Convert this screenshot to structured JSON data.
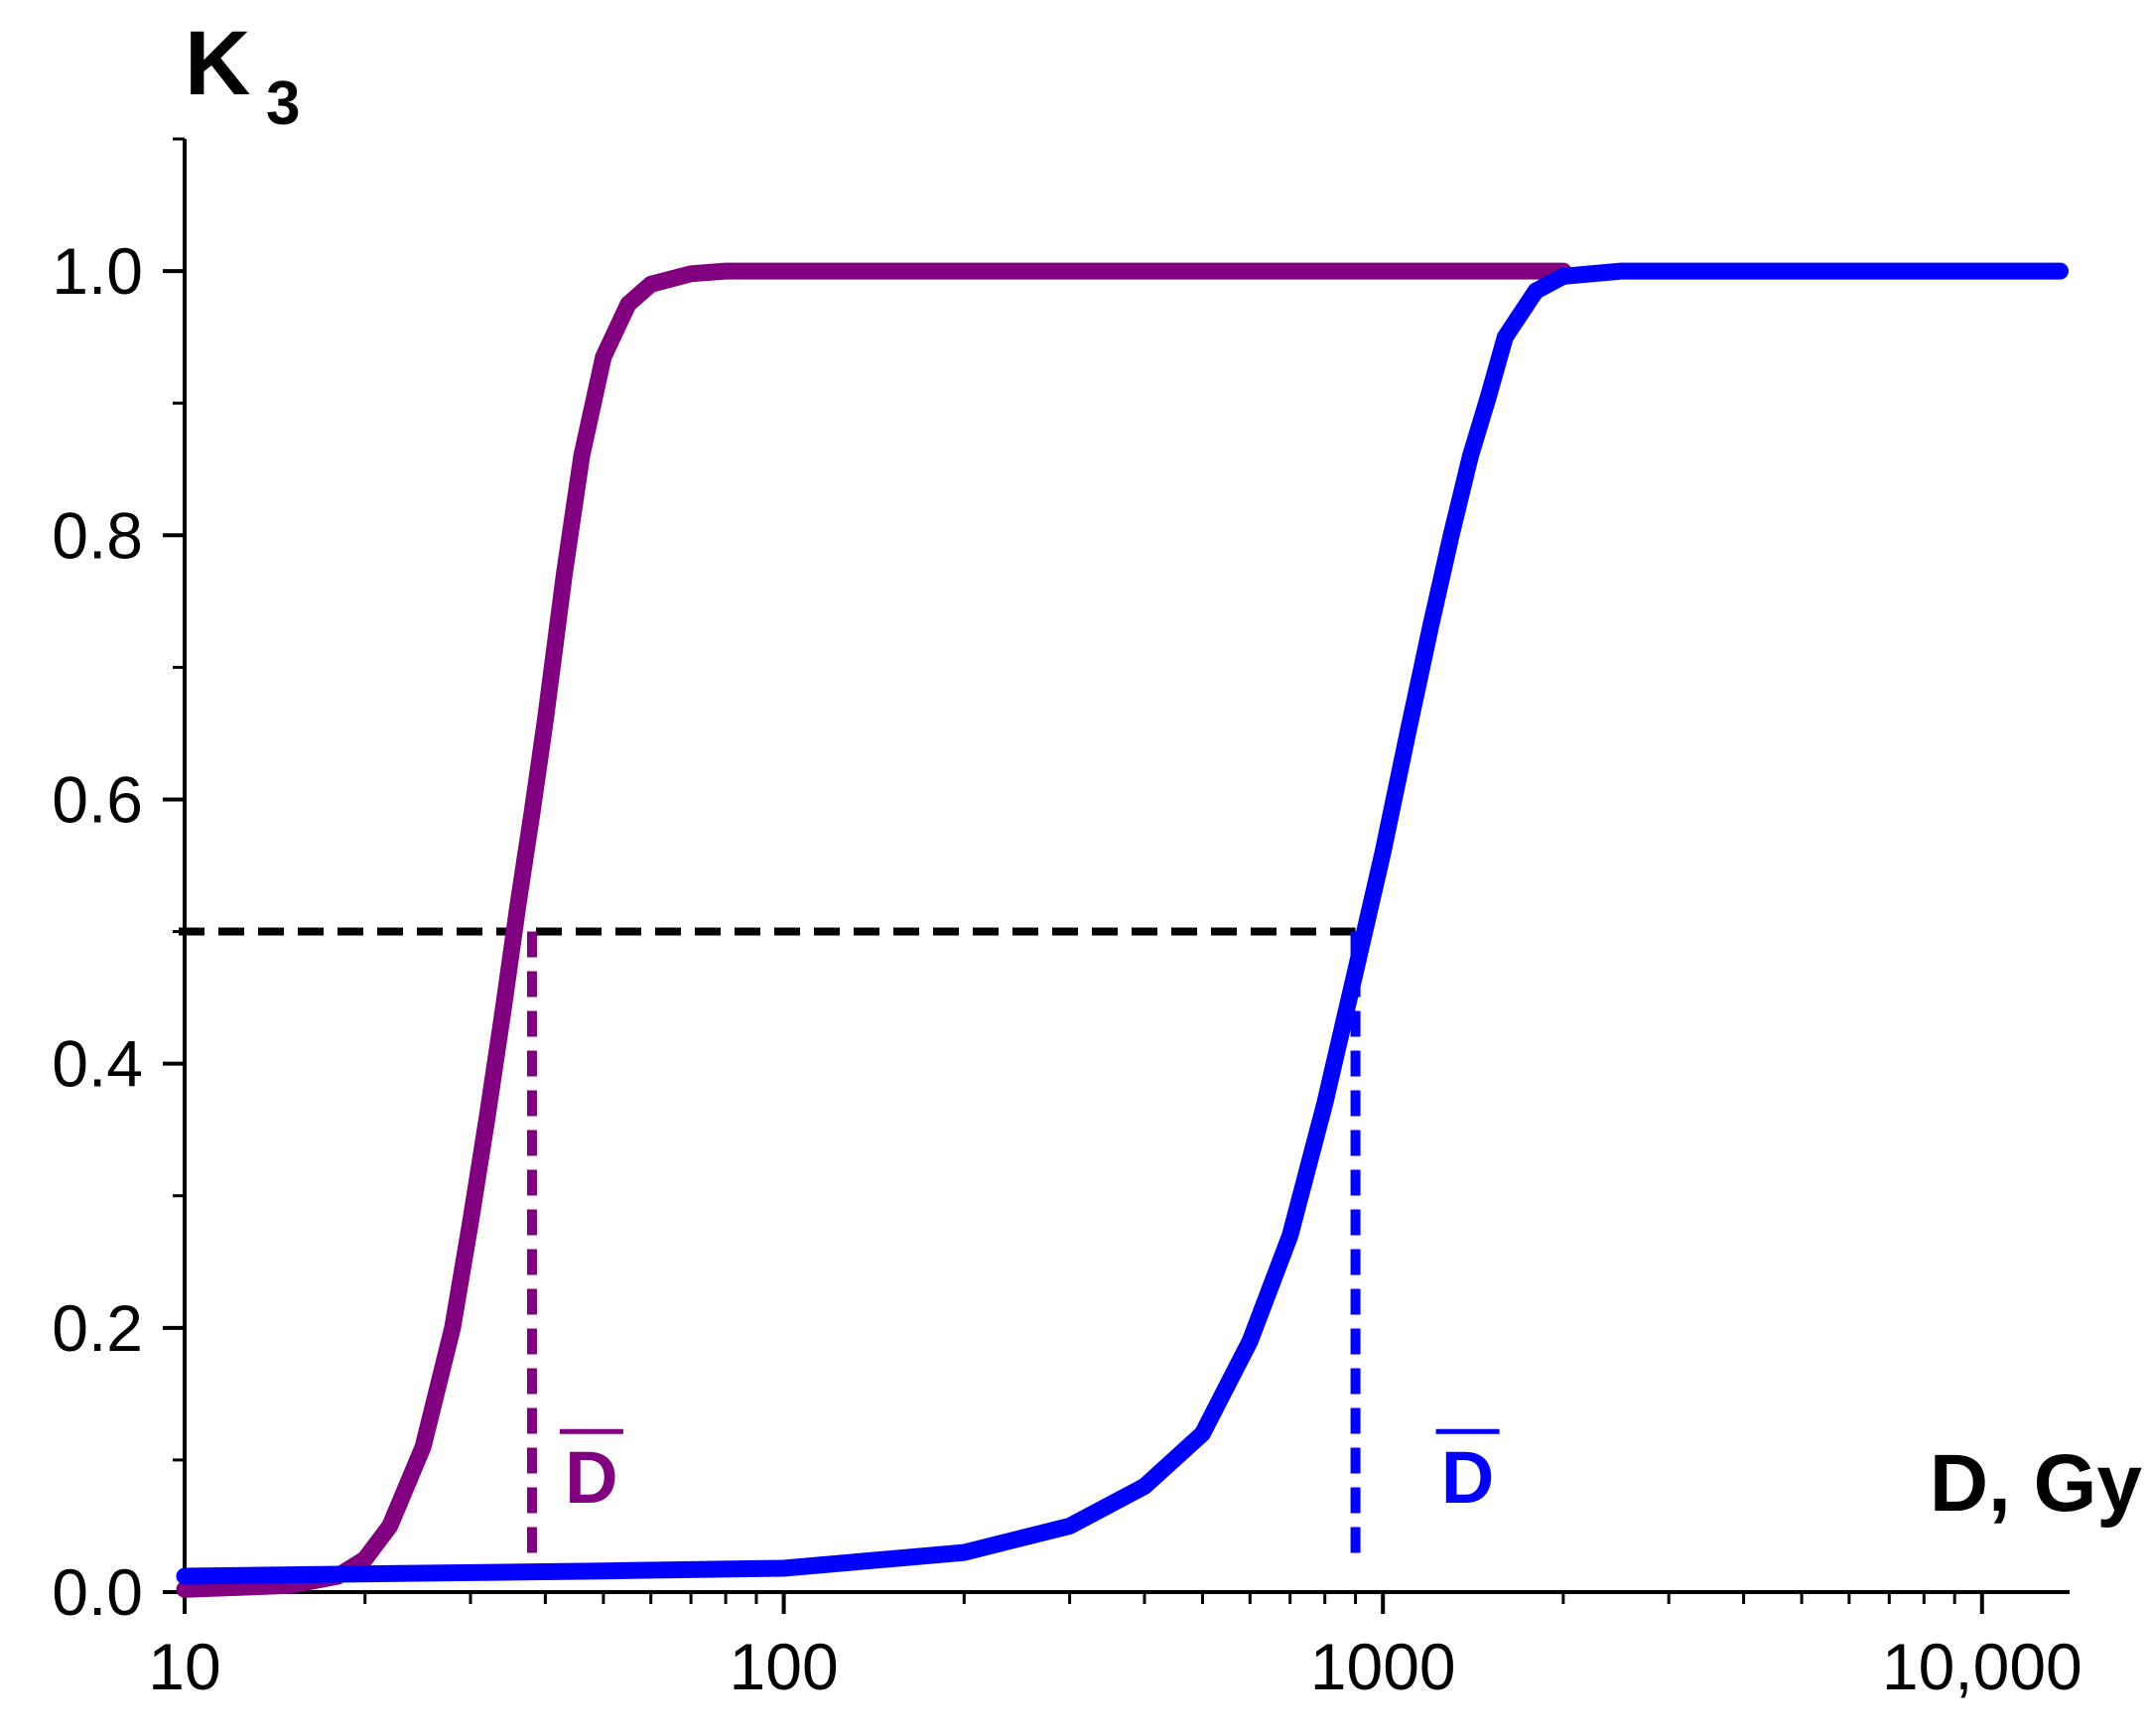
{
  "chart_data": {
    "type": "line",
    "x_scale": "log",
    "xlim": [
      10,
      14000
    ],
    "ylim": [
      0,
      1.1
    ],
    "grid": false,
    "xlabel": "D, Gy",
    "ylabel_main": "K",
    "ylabel_sub": "3",
    "x_ticks": [
      {
        "value": 10,
        "label": "10"
      },
      {
        "value": 100,
        "label": "100"
      },
      {
        "value": 1000,
        "label": "1000"
      },
      {
        "value": 10000,
        "label": "10,000"
      }
    ],
    "y_ticks": [
      {
        "value": 0.0,
        "label": "0.0"
      },
      {
        "value": 0.2,
        "label": "0.2"
      },
      {
        "value": 0.4,
        "label": "0.4"
      },
      {
        "value": 0.6,
        "label": "0.6"
      },
      {
        "value": 0.8,
        "label": "0.8"
      },
      {
        "value": 1.0,
        "label": "1.0"
      }
    ],
    "series": [
      {
        "color": "#800080",
        "x": [
          10,
          15,
          18,
          20,
          22,
          25,
          28,
          30,
          32,
          34,
          36,
          38,
          40,
          43,
          46,
          50,
          55,
          60,
          70,
          80,
          100,
          200,
          500,
          1000,
          2000
        ],
        "y": [
          0.002,
          0.005,
          0.012,
          0.025,
          0.05,
          0.11,
          0.2,
          0.28,
          0.36,
          0.44,
          0.52,
          0.59,
          0.66,
          0.77,
          0.86,
          0.935,
          0.975,
          0.99,
          0.998,
          1.0,
          1.0,
          1.0,
          1.0,
          1.0,
          1.0
        ]
      },
      {
        "color": "#0000ff",
        "x": [
          10,
          50,
          100,
          200,
          300,
          400,
          500,
          600,
          700,
          800,
          900,
          1000,
          1100,
          1200,
          1300,
          1400,
          1500,
          1600,
          1800,
          2000,
          2500,
          3000,
          5000,
          10000,
          13500
        ],
        "y": [
          0.012,
          0.016,
          0.018,
          0.03,
          0.05,
          0.08,
          0.12,
          0.19,
          0.27,
          0.37,
          0.47,
          0.56,
          0.65,
          0.73,
          0.8,
          0.86,
          0.905,
          0.95,
          0.985,
          0.996,
          1.0,
          1.0,
          1.0,
          1.0,
          1.0
        ]
      }
    ],
    "reference_lines": {
      "horizontal": {
        "y": 0.5,
        "x_from": 10,
        "x_to": 900,
        "color": "#000000"
      },
      "vertical": [
        {
          "x": 38,
          "y_from": 0,
          "y_to": 0.5,
          "color": "#800080"
        },
        {
          "x": 900,
          "y_from": 0,
          "y_to": 0.5,
          "color": "#0000ff"
        }
      ]
    },
    "annotations": [
      {
        "text": "D",
        "overline": true,
        "x": 50,
        "y": 0.09,
        "color": "#800080"
      },
      {
        "text": "D",
        "overline": true,
        "x": 1450,
        "y": 0.09,
        "color": "#0000ff"
      }
    ]
  }
}
